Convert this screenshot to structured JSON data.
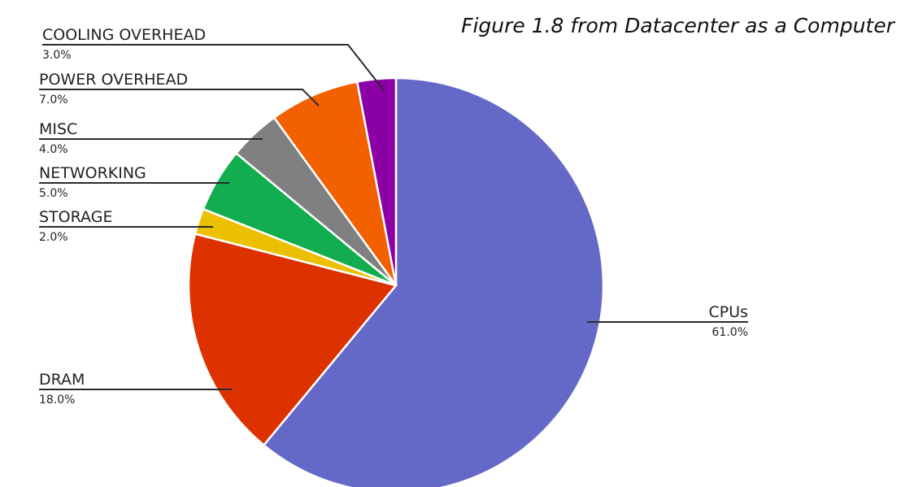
{
  "caption": "Figure 1.8 from Datacenter as a Computer",
  "chart_data": {
    "type": "pie",
    "start_angle_deg": 0,
    "direction": "clockwise",
    "slices": [
      {
        "label": "CPUs",
        "value": 61.0,
        "value_label": "61.0%",
        "color": "#6468c6"
      },
      {
        "label": "DRAM",
        "value": 18.0,
        "value_label": "18.0%",
        "color": "#dd3100"
      },
      {
        "label": "STORAGE",
        "value": 2.0,
        "value_label": "2.0%",
        "color": "#ebc000"
      },
      {
        "label": "NETWORKING",
        "value": 5.0,
        "value_label": "5.0%",
        "color": "#12ad4e"
      },
      {
        "label": "MISC",
        "value": 4.0,
        "value_label": "4.0%",
        "color": "#808083"
      },
      {
        "label": "POWER OVERHEAD",
        "value": 7.0,
        "value_label": "7.0%",
        "color": "#f26000"
      },
      {
        "label": "COOLING OVERHEAD",
        "value": 3.0,
        "value_label": "3.0%",
        "color": "#8b00a4"
      }
    ]
  }
}
